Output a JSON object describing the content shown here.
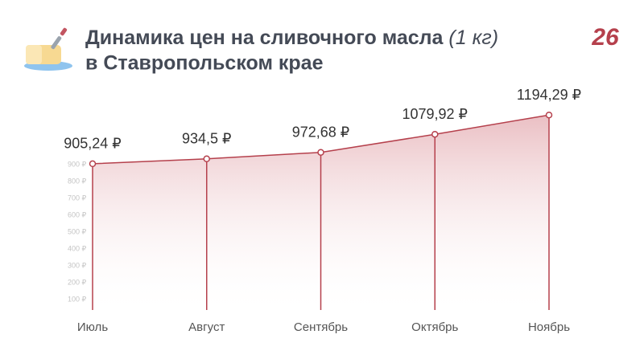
{
  "brand": "26",
  "chart_data": {
    "type": "area-line",
    "title": "Динамика цен на сливочного масла",
    "title_unit": "(1 кг)",
    "subtitle": "в Ставропольском крае",
    "categories": [
      "Июль",
      "Август",
      "Сентябрь",
      "Октябрь",
      "Ноябрь"
    ],
    "values": [
      905.24,
      934.5,
      972.68,
      1079.92,
      1194.29
    ],
    "value_labels": [
      "905,24 ₽",
      "934,5 ₽",
      "972,68 ₽",
      "1079,92 ₽",
      "1194,29 ₽"
    ],
    "color": "#b5404c",
    "ylim": [
      0,
      1200
    ],
    "yticks": [
      {
        "value": 100,
        "label": "100 ₽"
      },
      {
        "value": 200,
        "label": "200 ₽"
      },
      {
        "value": 300,
        "label": "300 ₽"
      },
      {
        "value": 400,
        "label": "400 ₽"
      },
      {
        "value": 500,
        "label": "500 ₽"
      },
      {
        "value": 600,
        "label": "600 ₽"
      },
      {
        "value": 700,
        "label": "700 ₽"
      },
      {
        "value": 800,
        "label": "800 ₽"
      },
      {
        "value": 900,
        "label": "900 ₽"
      }
    ],
    "grid": false
  }
}
